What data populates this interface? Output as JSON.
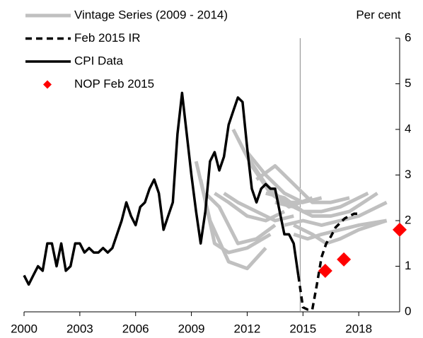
{
  "chart_data": {
    "type": "line",
    "y_axis_label": "Per cent",
    "y_axis_side": "right",
    "xlim": [
      2000,
      2020.2
    ],
    "xticks": [
      2000,
      2003,
      2006,
      2009,
      2012,
      2015,
      2018
    ],
    "ylim": [
      0,
      6
    ],
    "yticks": [
      0,
      1,
      2,
      3,
      4,
      5,
      6
    ],
    "vertical_line": 2014.85,
    "legend": "top-left",
    "series": [
      {
        "name": "Vintage Series (2009 - 2014)",
        "color": "#c0c0c0",
        "style": "thick",
        "lines": [
          {
            "x": [
              2009.25,
              2010.0,
              2011.0,
              2012.0,
              2013.0
            ],
            "values": [
              3.3,
              2.0,
              1.1,
              0.95,
              1.4
            ]
          },
          {
            "x": [
              2009.5,
              2010.25,
              2011.0,
              2012.0,
              2013.25
            ],
            "values": [
              2.9,
              1.5,
              1.3,
              1.4,
              1.7
            ]
          },
          {
            "x": [
              2009.75,
              2010.5,
              2011.5,
              2012.5,
              2013.5
            ],
            "values": [
              2.6,
              2.3,
              1.5,
              1.6,
              1.9
            ]
          },
          {
            "x": [
              2010.25,
              2011.0,
              2012.0,
              2013.0,
              2014.0
            ],
            "values": [
              2.6,
              2.4,
              2.1,
              2.0,
              2.2
            ]
          },
          {
            "x": [
              2010.75,
              2011.5,
              2012.5,
              2013.5,
              2014.5
            ],
            "values": [
              2.6,
              2.4,
              2.2,
              2.0,
              2.1
            ]
          },
          {
            "x": [
              2011.25,
              2012.0,
              2013.0,
              2014.0,
              2015.0
            ],
            "values": [
              4.0,
              3.4,
              2.8,
              2.4,
              2.4
            ]
          },
          {
            "x": [
              2011.5,
              2012.25,
              2013.25,
              2014.25,
              2015.5
            ],
            "values": [
              3.8,
              3.2,
              2.6,
              2.3,
              2.5
            ]
          },
          {
            "x": [
              2012.0,
              2013.0,
              2014.0,
              2015.0,
              2016.0
            ],
            "values": [
              3.5,
              3.0,
              2.6,
              2.4,
              2.5
            ]
          },
          {
            "x": [
              2012.5,
              2013.5,
              2014.5,
              2015.5,
              2016.5,
              2017.5
            ],
            "values": [
              2.9,
              3.2,
              2.8,
              2.4,
              2.4,
              2.5
            ]
          },
          {
            "x": [
              2013.0,
              2014.0,
              2015.0,
              2016.0,
              2017.0,
              2018.5
            ],
            "values": [
              2.6,
              2.5,
              2.2,
              2.2,
              2.3,
              2.6
            ]
          },
          {
            "x": [
              2013.5,
              2014.5,
              2015.5,
              2016.5,
              2017.5,
              2019.0
            ],
            "values": [
              2.4,
              2.3,
              2.1,
              2.1,
              2.2,
              2.6
            ]
          },
          {
            "x": [
              2014.0,
              2015.0,
              2016.0,
              2017.0,
              2018.0,
              2019.5
            ],
            "values": [
              1.9,
              2.0,
              1.9,
              2.0,
              2.1,
              2.4
            ]
          },
          {
            "x": [
              2014.5,
              2015.25,
              2016.0,
              2017.0,
              2018.0,
              2019.5
            ],
            "values": [
              1.7,
              1.6,
              1.7,
              1.8,
              1.9,
              2.0
            ]
          },
          {
            "x": [
              2014.5,
              2015.5,
              2016.25,
              2017.0,
              2018.0,
              2019.5
            ],
            "values": [
              1.9,
              1.7,
              1.5,
              1.6,
              1.8,
              2.0
            ]
          }
        ]
      },
      {
        "name": "Feb 2015 IR",
        "color": "#000000",
        "style": "dashed",
        "x": [
          2014.75,
          2015.0,
          2015.25,
          2015.5,
          2015.75,
          2016.0,
          2016.25,
          2016.5,
          2016.75,
          2017.0,
          2017.25,
          2017.5,
          2017.75,
          2018.0
        ],
        "values": [
          0.8,
          0.1,
          0.05,
          0.05,
          0.6,
          1.2,
          1.5,
          1.65,
          1.85,
          1.95,
          2.05,
          2.1,
          2.15,
          2.15
        ]
      },
      {
        "name": "CPI Data",
        "color": "#000000",
        "style": "solid",
        "x": [
          2000.0,
          2000.25,
          2000.5,
          2000.75,
          2001.0,
          2001.25,
          2001.5,
          2001.75,
          2002.0,
          2002.25,
          2002.5,
          2002.75,
          2003.0,
          2003.25,
          2003.5,
          2003.75,
          2004.0,
          2004.25,
          2004.5,
          2004.75,
          2005.0,
          2005.25,
          2005.5,
          2005.75,
          2006.0,
          2006.25,
          2006.5,
          2006.75,
          2007.0,
          2007.25,
          2007.5,
          2007.75,
          2008.0,
          2008.25,
          2008.5,
          2008.75,
          2009.0,
          2009.25,
          2009.5,
          2009.75,
          2010.0,
          2010.25,
          2010.5,
          2010.75,
          2011.0,
          2011.25,
          2011.5,
          2011.75,
          2012.0,
          2012.25,
          2012.5,
          2012.75,
          2013.0,
          2013.25,
          2013.5,
          2013.75,
          2014.0,
          2014.25,
          2014.5,
          2014.75
        ],
        "values": [
          0.8,
          0.6,
          0.8,
          1.0,
          0.9,
          1.5,
          1.5,
          1.0,
          1.5,
          0.9,
          1.0,
          1.5,
          1.5,
          1.3,
          1.4,
          1.3,
          1.3,
          1.4,
          1.3,
          1.4,
          1.7,
          2.0,
          2.4,
          2.1,
          1.9,
          2.3,
          2.4,
          2.7,
          2.9,
          2.6,
          1.8,
          2.1,
          2.4,
          3.9,
          4.8,
          3.9,
          3.0,
          2.2,
          1.5,
          2.2,
          3.3,
          3.5,
          3.1,
          3.4,
          4.1,
          4.4,
          4.7,
          4.6,
          3.6,
          2.7,
          2.4,
          2.7,
          2.8,
          2.7,
          2.7,
          2.2,
          1.7,
          1.7,
          1.5,
          0.8
        ]
      },
      {
        "name": "NOP Feb 2015",
        "color": "#ff0000",
        "style": "markers",
        "x": [
          2016.2,
          2017.2,
          2020.2
        ],
        "values": [
          0.9,
          1.15,
          1.8
        ]
      }
    ]
  }
}
